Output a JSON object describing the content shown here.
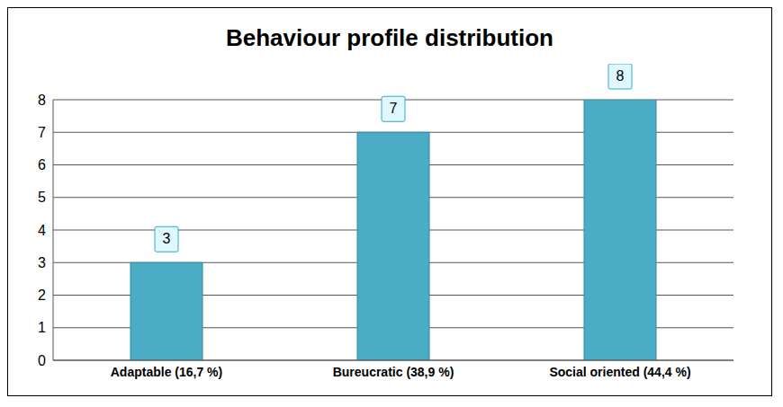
{
  "chart_data": {
    "type": "bar",
    "title": "Behaviour profile distribution",
    "categories": [
      "Adaptable (16,7 %)",
      "Bureucratic (38,9 %)",
      "Social oriented (44,4 %)"
    ],
    "values": [
      3,
      7,
      8
    ],
    "color": "#4bacc6",
    "ylim": [
      0,
      8
    ],
    "yticks": [
      0,
      1,
      2,
      3,
      4,
      5,
      6,
      7,
      8
    ],
    "grid": true,
    "data_labels": true
  }
}
